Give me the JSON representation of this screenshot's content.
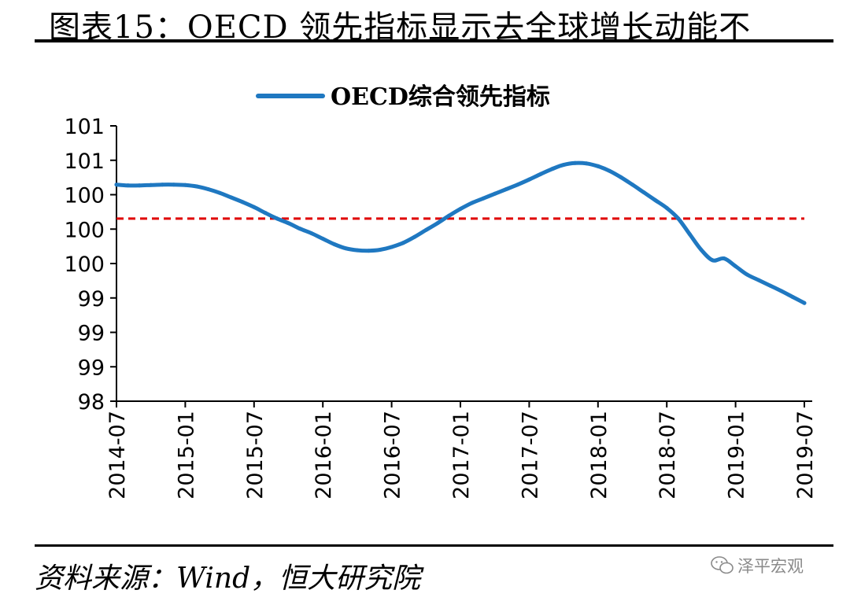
{
  "figure": {
    "title": "图表15：OECD 领先指标显示去全球增长动能不",
    "source": "资料来源：Wind，恒大研究院",
    "watermark": "泽平宏观"
  },
  "colors": {
    "series": "#1f78c1",
    "reference": "#e00000",
    "axis": "#000000"
  },
  "chart_data": {
    "type": "line",
    "title": "",
    "xlabel": "",
    "ylabel": "",
    "ylim": [
      98,
      101
    ],
    "y_ticks": [
      "98",
      "99",
      "99",
      "99",
      "100",
      "100",
      "100",
      "101",
      "101"
    ],
    "x_ticks": [
      "2014-07",
      "2015-01",
      "2015-07",
      "2016-01",
      "2016-07",
      "2017-01",
      "2017-07",
      "2018-01",
      "2018-07",
      "2019-01",
      "2019-07"
    ],
    "grid": false,
    "legend": "top-center",
    "reference_line": {
      "y": 99.99,
      "style": "dashed"
    },
    "series": [
      {
        "name": "OECD综合领先指标",
        "x": [
          "2014-07",
          "2014-08",
          "2014-09",
          "2014-10",
          "2014-11",
          "2014-12",
          "2015-01",
          "2015-02",
          "2015-03",
          "2015-04",
          "2015-05",
          "2015-06",
          "2015-07",
          "2015-08",
          "2015-09",
          "2015-10",
          "2015-11",
          "2015-12",
          "2016-01",
          "2016-02",
          "2016-03",
          "2016-04",
          "2016-05",
          "2016-06",
          "2016-07",
          "2016-08",
          "2016-09",
          "2016-10",
          "2016-11",
          "2016-12",
          "2017-01",
          "2017-02",
          "2017-03",
          "2017-04",
          "2017-05",
          "2017-06",
          "2017-07",
          "2017-08",
          "2017-09",
          "2017-10",
          "2017-11",
          "2017-12",
          "2018-01",
          "2018-02",
          "2018-03",
          "2018-04",
          "2018-05",
          "2018-06",
          "2018-07",
          "2018-08",
          "2018-09",
          "2018-10",
          "2018-11",
          "2018-12",
          "2019-01",
          "2019-02",
          "2019-03",
          "2019-04",
          "2019-05",
          "2019-06",
          "2019-07"
        ],
        "values": [
          100.36,
          100.35,
          100.35,
          100.355,
          100.36,
          100.36,
          100.355,
          100.34,
          100.31,
          100.27,
          100.22,
          100.17,
          100.115,
          100.05,
          99.99,
          99.94,
          99.88,
          99.83,
          99.77,
          99.71,
          99.665,
          99.645,
          99.64,
          99.65,
          99.68,
          99.725,
          99.79,
          99.865,
          99.94,
          100.02,
          100.095,
          100.16,
          100.21,
          100.26,
          100.31,
          100.36,
          100.415,
          100.475,
          100.53,
          100.575,
          100.595,
          100.59,
          100.56,
          100.51,
          100.44,
          100.36,
          100.275,
          100.19,
          100.105,
          99.99,
          99.82,
          99.65,
          99.535,
          99.555,
          99.47,
          99.38,
          99.32,
          99.26,
          99.2,
          99.135,
          99.07
        ]
      }
    ]
  }
}
